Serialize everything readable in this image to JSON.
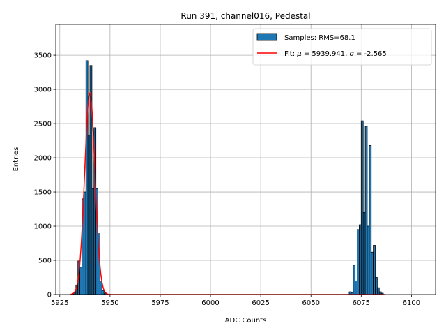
{
  "chart_data": {
    "type": "bar",
    "title": "Run 391, channel016, Pedestal",
    "xlabel": "ADC Counts",
    "ylabel": "Entries",
    "xlim": [
      5923,
      6112
    ],
    "ylim": [
      0,
      3950
    ],
    "xticks": [
      5925,
      5950,
      5975,
      6000,
      6025,
      6050,
      6075,
      6100
    ],
    "yticks": [
      0,
      500,
      1000,
      1500,
      2000,
      2500,
      3000,
      3500
    ],
    "grid": true,
    "legend_position": "top-right",
    "bin_width": 1,
    "series": [
      {
        "name": "Samples: RMS=68.1",
        "kind": "histogram",
        "color": "#1f77b4",
        "edgecolor": "#000000",
        "bins": [
          [
            5931,
            10
          ],
          [
            5932,
            30
          ],
          [
            5933,
            140
          ],
          [
            5934,
            490
          ],
          [
            5935,
            400
          ],
          [
            5936,
            1400
          ],
          [
            5937,
            1500
          ],
          [
            5938,
            3420
          ],
          [
            5939,
            2330
          ],
          [
            5940,
            3350
          ],
          [
            5941,
            1550
          ],
          [
            5942,
            2440
          ],
          [
            5943,
            1550
          ],
          [
            5944,
            890
          ],
          [
            5945,
            200
          ],
          [
            5946,
            60
          ],
          [
            5947,
            20
          ],
          [
            6069,
            40
          ],
          [
            6070,
            30
          ],
          [
            6071,
            430
          ],
          [
            6072,
            200
          ],
          [
            6073,
            950
          ],
          [
            6074,
            1020
          ],
          [
            6075,
            2540
          ],
          [
            6076,
            1200
          ],
          [
            6077,
            2460
          ],
          [
            6078,
            1000
          ],
          [
            6079,
            2180
          ],
          [
            6080,
            620
          ],
          [
            6081,
            720
          ],
          [
            6082,
            250
          ],
          [
            6083,
            100
          ],
          [
            6084,
            40
          ],
          [
            6085,
            20
          ]
        ]
      },
      {
        "name": "Fit: μ = 5939.941, σ = -2.565",
        "legend_prefix": "Fit: ",
        "legend_mu": "μ",
        "legend_mid": " = 5939.941, ",
        "legend_sigma": "σ",
        "legend_suffix": " = -2.565",
        "kind": "gaussian",
        "color": "#ff0000",
        "mu": 5939.941,
        "sigma": -2.565,
        "amplitude": 2950,
        "x_range": [
          5930,
          6087
        ]
      }
    ]
  }
}
